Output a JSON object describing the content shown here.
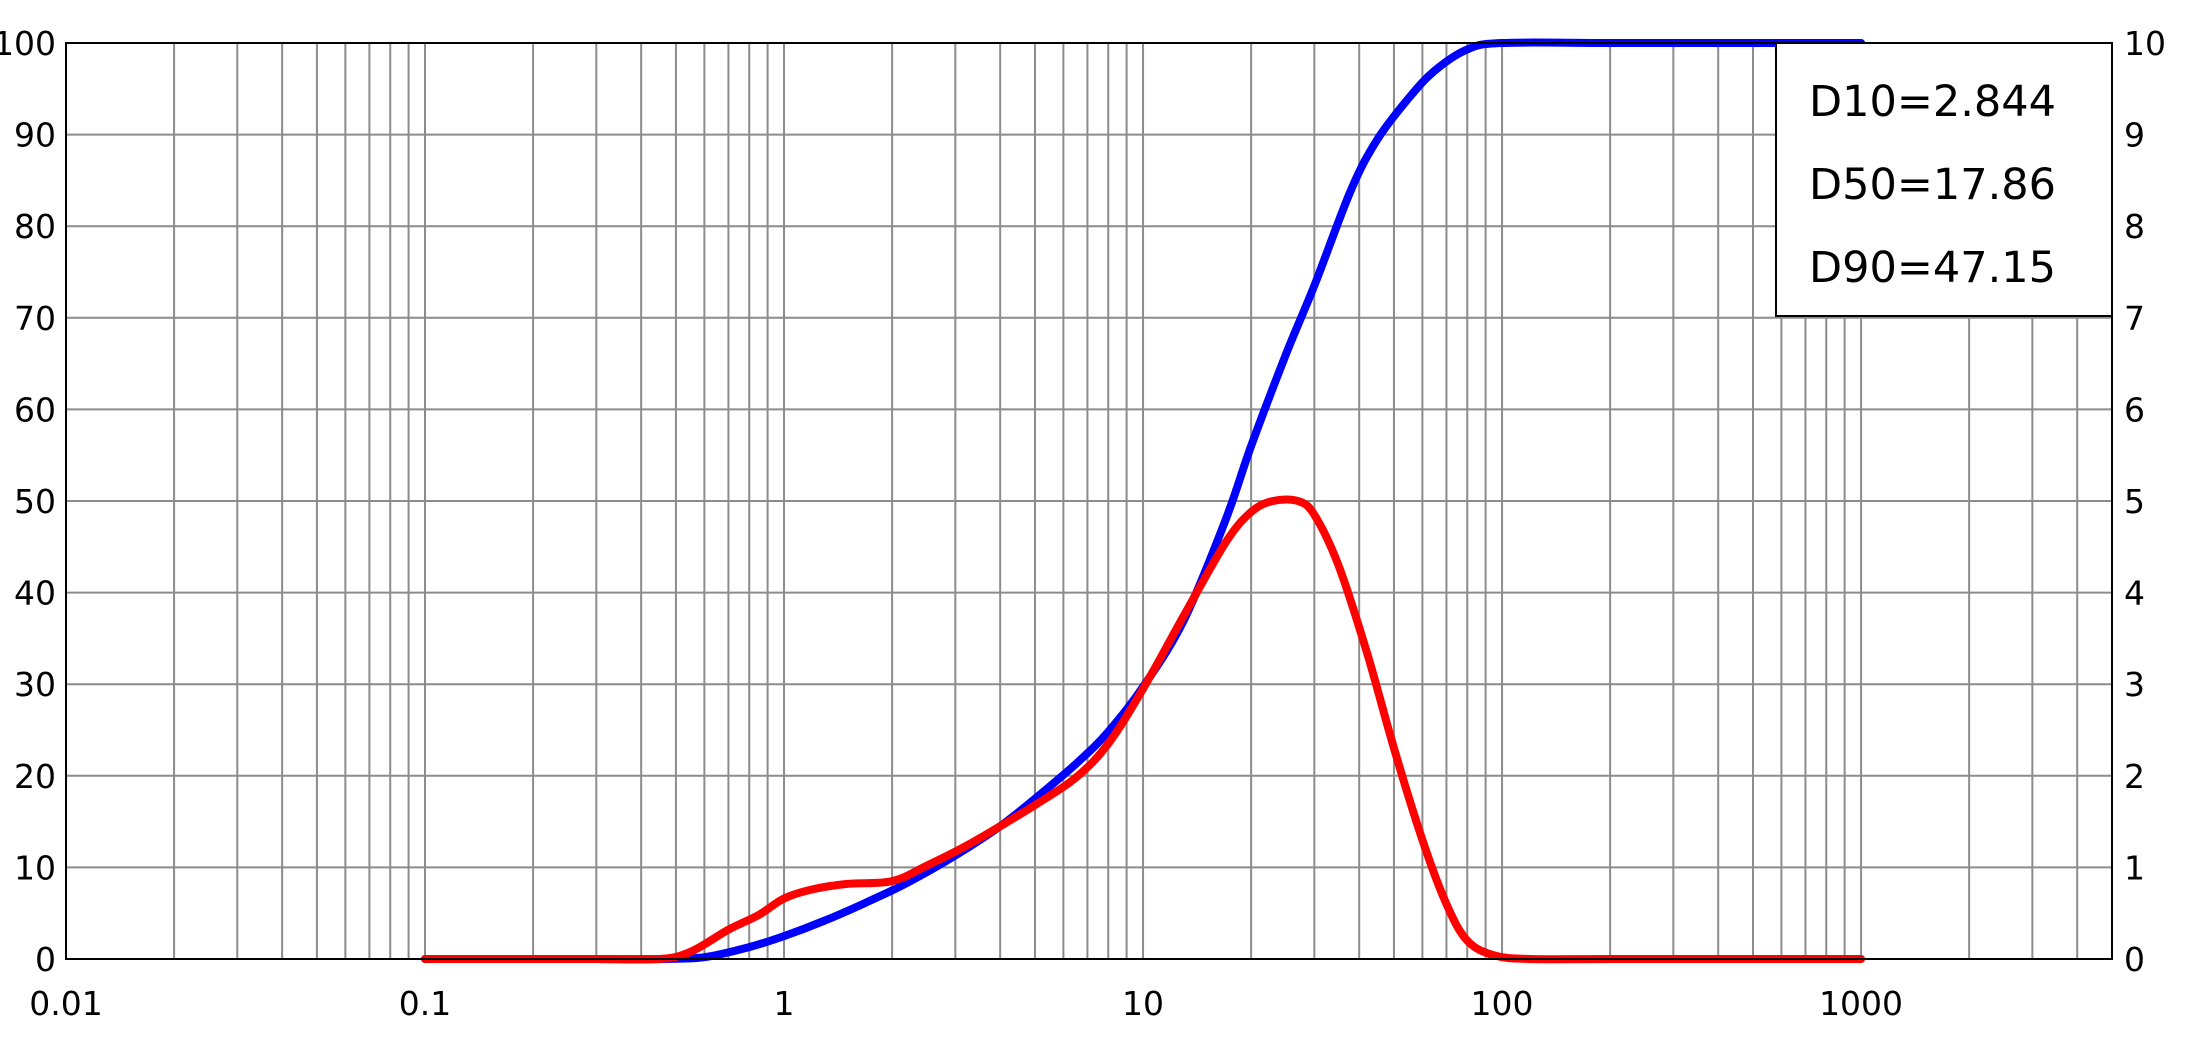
{
  "chart_data": {
    "type": "line",
    "title": "",
    "xlabel": "",
    "ylabel": "",
    "ylabel_right": "",
    "x_scale": "log",
    "xlim": [
      0.01,
      5000
    ],
    "ylim": [
      0,
      100
    ],
    "ylim_right": [
      0,
      10
    ],
    "grid": true,
    "x_ticks": [
      0.01,
      0.1,
      1,
      10,
      100,
      1000
    ],
    "x_tick_labels": [
      "0.01",
      "0.1",
      "1",
      "10",
      "100",
      "1000"
    ],
    "y_ticks": [
      0,
      10,
      20,
      30,
      40,
      50,
      60,
      70,
      80,
      90,
      100
    ],
    "y_tick_labels": [
      "0",
      "10",
      "20",
      "30",
      "40",
      "50",
      "60",
      "70",
      "80",
      "90",
      "100"
    ],
    "y_right_tick_labels": [
      "0",
      "1",
      "2",
      "3",
      "4",
      "5",
      "6",
      "7",
      "8",
      "9",
      "10"
    ],
    "annotation_box": {
      "placement": "top-right",
      "lines": [
        "D10=2.844",
        "D50=17.86",
        "D90=47.15"
      ]
    },
    "series": [
      {
        "axis": "left",
        "color": "#0000ff",
        "x": [
          0.1,
          0.2,
          0.3,
          0.45,
          0.6,
          0.8,
          1.0,
          1.3,
          1.7,
          2.2,
          3.0,
          4.0,
          5.0,
          6.5,
          8.0,
          10,
          13,
          17,
          20,
          25,
          30,
          38,
          45,
          55,
          65,
          80,
          100,
          200,
          500,
          1000
        ],
        "y": [
          0,
          0,
          0,
          0,
          0.2,
          1.3,
          2.5,
          4.2,
          6.2,
          8.3,
          11.3,
          14.5,
          17.5,
          21.3,
          24.8,
          29.7,
          37,
          48,
          56,
          66,
          73.5,
          84,
          89.5,
          94,
          97,
          99.3,
          100,
          100,
          100,
          100
        ]
      },
      {
        "axis": "right",
        "color": "#ff0000",
        "x": [
          0.1,
          0.2,
          0.3,
          0.45,
          0.55,
          0.7,
          0.85,
          1.0,
          1.2,
          1.5,
          2.0,
          2.5,
          3.2,
          4.0,
          5.0,
          6.5,
          8.0,
          10,
          13,
          17,
          20,
          23,
          27,
          30,
          35,
          42,
          50,
          60,
          70,
          80,
          95,
          120,
          200,
          500,
          1000
        ],
        "y": [
          0,
          0,
          0,
          0,
          0.08,
          0.32,
          0.48,
          0.66,
          0.76,
          0.82,
          0.85,
          1.02,
          1.23,
          1.45,
          1.68,
          1.98,
          2.35,
          2.95,
          3.75,
          4.55,
          4.88,
          5.0,
          5.0,
          4.85,
          4.3,
          3.35,
          2.3,
          1.3,
          0.6,
          0.2,
          0.04,
          0,
          0,
          0,
          0
        ]
      }
    ]
  }
}
